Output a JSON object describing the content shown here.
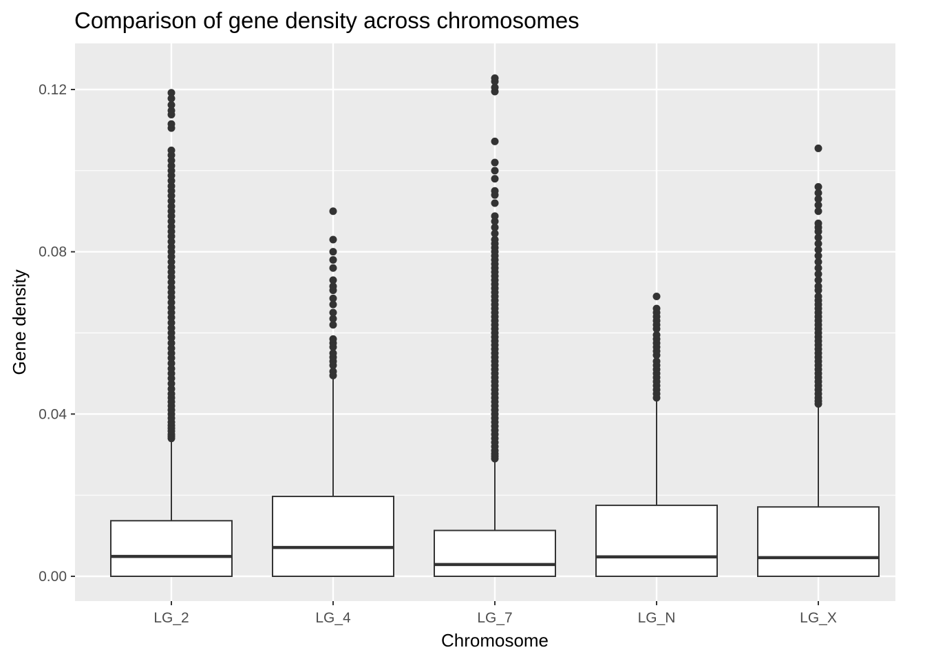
{
  "chart_data": {
    "type": "boxplot",
    "title": "Comparison of gene density across chromosomes",
    "xlabel": "Chromosome",
    "ylabel": "Gene density",
    "ylim": [
      -0.006,
      0.131
    ],
    "yticks": [
      0.0,
      0.04,
      0.08,
      0.12
    ],
    "ytick_labels": [
      "0.00",
      "0.04",
      "0.08",
      "0.12"
    ],
    "grid": true,
    "legend": "none",
    "categories": [
      "LG_2",
      "LG_4",
      "LG_7",
      "LG_N",
      "LG_X"
    ],
    "boxes": [
      {
        "name": "LG_2",
        "min": 0.0,
        "q1": 0.0,
        "median": 0.0049,
        "q3": 0.0137,
        "whisker_high": 0.034,
        "outliers": [
          0.034,
          0.0345,
          0.035,
          0.0358,
          0.0365,
          0.0372,
          0.038,
          0.039,
          0.04,
          0.041,
          0.042,
          0.043,
          0.044,
          0.045,
          0.0462,
          0.0475,
          0.0488,
          0.05,
          0.0512,
          0.0525,
          0.0538,
          0.055,
          0.0562,
          0.0575,
          0.0588,
          0.06,
          0.0612,
          0.0625,
          0.0638,
          0.065,
          0.0662,
          0.0675,
          0.0688,
          0.07,
          0.0712,
          0.0725,
          0.0738,
          0.075,
          0.0762,
          0.0775,
          0.0788,
          0.08,
          0.0812,
          0.0825,
          0.0838,
          0.085,
          0.0862,
          0.0875,
          0.0888,
          0.09,
          0.0912,
          0.0925,
          0.0938,
          0.095,
          0.0962,
          0.0975,
          0.0988,
          0.1,
          0.1012,
          0.1025,
          0.1038,
          0.105,
          0.1105,
          0.1115,
          0.1138,
          0.1148,
          0.1162,
          0.1178,
          0.1192
        ]
      },
      {
        "name": "LG_4",
        "min": 0.0,
        "q1": 0.0,
        "median": 0.0071,
        "q3": 0.0197,
        "whisker_high": 0.049,
        "outliers": [
          0.0495,
          0.0505,
          0.052,
          0.053,
          0.054,
          0.055,
          0.0565,
          0.0575,
          0.0585,
          0.062,
          0.0635,
          0.065,
          0.067,
          0.0685,
          0.0705,
          0.0715,
          0.073,
          0.076,
          0.078,
          0.08,
          0.083,
          0.09
        ]
      },
      {
        "name": "LG_7",
        "min": 0.0,
        "q1": 0.0,
        "median": 0.0029,
        "q3": 0.0113,
        "whisker_high": 0.0285,
        "outliers": [
          0.029,
          0.0296,
          0.0302,
          0.031,
          0.032,
          0.033,
          0.034,
          0.035,
          0.036,
          0.037,
          0.038,
          0.039,
          0.04,
          0.041,
          0.042,
          0.043,
          0.044,
          0.045,
          0.046,
          0.047,
          0.048,
          0.049,
          0.05,
          0.051,
          0.052,
          0.053,
          0.054,
          0.055,
          0.056,
          0.057,
          0.058,
          0.059,
          0.06,
          0.061,
          0.062,
          0.063,
          0.064,
          0.065,
          0.066,
          0.067,
          0.068,
          0.069,
          0.07,
          0.071,
          0.072,
          0.073,
          0.074,
          0.075,
          0.076,
          0.077,
          0.078,
          0.079,
          0.08,
          0.081,
          0.082,
          0.083,
          0.0845,
          0.086,
          0.0875,
          0.0888,
          0.092,
          0.094,
          0.095,
          0.098,
          0.1,
          0.102,
          0.1072,
          0.1195,
          0.1205,
          0.122,
          0.1228
        ]
      },
      {
        "name": "LG_N",
        "min": 0.0,
        "q1": 0.0,
        "median": 0.0048,
        "q3": 0.0175,
        "whisker_high": 0.0435,
        "outliers": [
          0.044,
          0.045,
          0.046,
          0.047,
          0.048,
          0.049,
          0.05,
          0.051,
          0.052,
          0.053,
          0.0545,
          0.0555,
          0.0565,
          0.0575,
          0.0585,
          0.0595,
          0.061,
          0.062,
          0.063,
          0.064,
          0.065,
          0.066,
          0.069
        ]
      },
      {
        "name": "LG_X",
        "min": 0.0,
        "q1": 0.0,
        "median": 0.0046,
        "q3": 0.0171,
        "whisker_high": 0.0425,
        "outliers": [
          0.0425,
          0.0432,
          0.044,
          0.045,
          0.046,
          0.047,
          0.048,
          0.049,
          0.05,
          0.051,
          0.052,
          0.053,
          0.054,
          0.055,
          0.056,
          0.057,
          0.058,
          0.059,
          0.06,
          0.061,
          0.062,
          0.063,
          0.064,
          0.065,
          0.066,
          0.067,
          0.068,
          0.069,
          0.0705,
          0.0715,
          0.073,
          0.0745,
          0.076,
          0.0775,
          0.079,
          0.0805,
          0.082,
          0.0835,
          0.085,
          0.086,
          0.087,
          0.09,
          0.0915,
          0.093,
          0.0945,
          0.096,
          0.1055
        ]
      }
    ]
  }
}
